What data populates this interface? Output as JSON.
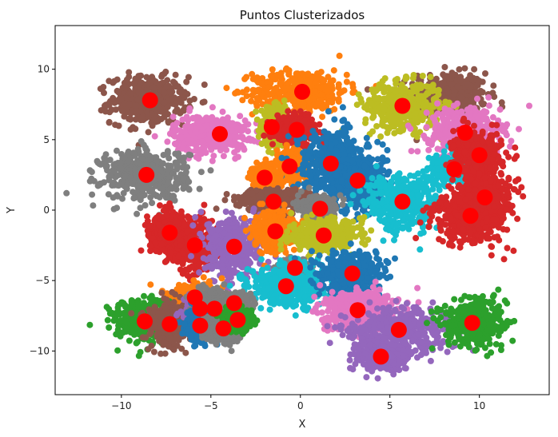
{
  "chart_data": {
    "type": "scatter",
    "title": "Puntos Clusterizados",
    "xlabel": "X",
    "ylabel": "Y",
    "xlim": [
      -13.7,
      13.9
    ],
    "ylim": [
      -13.1,
      13.1
    ],
    "xticks": [
      -10,
      -5,
      0,
      5,
      10
    ],
    "yticks": [
      -10,
      -5,
      0,
      5,
      10
    ],
    "xtick_labels": [
      "−10",
      "−5",
      "0",
      "5",
      "10"
    ],
    "ytick_labels": [
      "−10",
      "−5",
      "0",
      "5",
      "10"
    ],
    "grid": false,
    "legend": false,
    "palette": {
      "blue": "#1f77b4",
      "orange": "#ff7f0e",
      "green": "#2ca02c",
      "red": "#d62728",
      "purple": "#9467bd",
      "brown": "#8c564b",
      "pink": "#e377c2",
      "gray": "#7f7f7f",
      "olive": "#bcbd22",
      "cyan": "#17becf",
      "centroid": "#ff0000"
    },
    "clusters": [
      {
        "center": [
          8.2,
          8.2
        ],
        "color": "brown",
        "spread": [
          2.0,
          1.4
        ]
      },
      {
        "center": [
          -8.5,
          7.8
        ],
        "color": "brown",
        "spread": [
          1.9,
          1.5
        ]
      },
      {
        "center": [
          0.0,
          8.5
        ],
        "color": "orange",
        "spread": [
          2.4,
          1.3
        ]
      },
      {
        "center": [
          5.7,
          7.4
        ],
        "color": "olive",
        "spread": [
          1.9,
          1.5
        ]
      },
      {
        "center": [
          -5.0,
          5.4
        ],
        "color": "pink",
        "spread": [
          1.9,
          1.2
        ]
      },
      {
        "center": [
          9.2,
          5.6
        ],
        "color": "pink",
        "spread": [
          1.8,
          1.5
        ]
      },
      {
        "center": [
          -1.5,
          5.9
        ],
        "color": "olive",
        "spread": [
          0.6,
          1.2
        ]
      },
      {
        "center": [
          -0.2,
          5.7
        ],
        "color": "red",
        "spread": [
          1.0,
          0.8
        ]
      },
      {
        "center": [
          -8.7,
          2.5
        ],
        "color": "gray",
        "spread": [
          2.2,
          1.6
        ]
      },
      {
        "center": [
          -0.5,
          3.1
        ],
        "color": "orange",
        "spread": [
          0.8,
          1.0
        ]
      },
      {
        "center": [
          1.7,
          3.3
        ],
        "color": "blue",
        "spread": [
          1.7,
          2.2
        ]
      },
      {
        "center": [
          3.2,
          2.1
        ],
        "color": "blue",
        "spread": [
          1.5,
          1.8
        ]
      },
      {
        "center": [
          -2.0,
          2.3
        ],
        "color": "orange",
        "spread": [
          0.6,
          0.8
        ]
      },
      {
        "center": [
          5.7,
          0.6
        ],
        "color": "cyan",
        "spread": [
          1.8,
          1.8
        ]
      },
      {
        "center": [
          8.5,
          2.9
        ],
        "color": "cyan",
        "spread": [
          1.0,
          0.8
        ]
      },
      {
        "center": [
          9.9,
          3.9
        ],
        "color": "red",
        "spread": [
          1.2,
          1.4
        ]
      },
      {
        "center": [
          10.3,
          0.9
        ],
        "color": "red",
        "spread": [
          1.2,
          1.2
        ]
      },
      {
        "center": [
          9.5,
          -0.4
        ],
        "color": "red",
        "spread": [
          1.8,
          1.8
        ]
      },
      {
        "center": [
          -1.5,
          0.7
        ],
        "color": "brown",
        "spread": [
          1.8,
          0.7
        ]
      },
      {
        "center": [
          1.0,
          0.1
        ],
        "color": "gray",
        "spread": [
          0.8,
          0.7
        ]
      },
      {
        "center": [
          -7.3,
          -1.6
        ],
        "color": "red",
        "spread": [
          1.0,
          1.2
        ]
      },
      {
        "center": [
          -5.9,
          -2.5
        ],
        "color": "red",
        "spread": [
          1.2,
          1.6
        ]
      },
      {
        "center": [
          -3.7,
          -2.6
        ],
        "color": "purple",
        "spread": [
          1.4,
          1.9
        ]
      },
      {
        "center": [
          -1.4,
          -1.5
        ],
        "color": "orange",
        "spread": [
          1.0,
          1.2
        ]
      },
      {
        "center": [
          1.3,
          -1.8
        ],
        "color": "olive",
        "spread": [
          1.7,
          1.0
        ]
      },
      {
        "center": [
          -0.3,
          -4.1
        ],
        "color": "gray",
        "spread": [
          0.6,
          0.5
        ]
      },
      {
        "center": [
          -0.8,
          -5.4
        ],
        "color": "cyan",
        "spread": [
          2.0,
          1.3
        ]
      },
      {
        "center": [
          2.9,
          -4.5
        ],
        "color": "blue",
        "spread": [
          1.6,
          1.4
        ]
      },
      {
        "center": [
          -5.9,
          -6.2
        ],
        "color": "orange",
        "spread": [
          1.3,
          0.8
        ]
      },
      {
        "center": [
          -8.7,
          -7.9
        ],
        "color": "green",
        "spread": [
          1.5,
          1.3
        ]
      },
      {
        "center": [
          -7.3,
          -8.1
        ],
        "color": "brown",
        "spread": [
          1.1,
          1.4
        ]
      },
      {
        "center": [
          -5.6,
          -7.1
        ],
        "color": "purple",
        "spread": [
          0.8,
          0.8
        ]
      },
      {
        "center": [
          -4.8,
          -7.0
        ],
        "color": "gray",
        "spread": [
          1.0,
          1.1
        ]
      },
      {
        "center": [
          -5.6,
          -8.2
        ],
        "color": "blue",
        "spread": [
          0.7,
          0.9
        ]
      },
      {
        "center": [
          -4.3,
          -8.4
        ],
        "color": "gray",
        "spread": [
          0.8,
          0.8
        ]
      },
      {
        "center": [
          -3.7,
          -6.6
        ],
        "color": "gray",
        "spread": [
          0.8,
          0.6
        ]
      },
      {
        "center": [
          -3.5,
          -7.8
        ],
        "color": "green",
        "spread": [
          0.7,
          0.6
        ]
      },
      {
        "center": [
          3.2,
          -7.1
        ],
        "color": "pink",
        "spread": [
          1.8,
          1.2
        ]
      },
      {
        "center": [
          5.5,
          -8.5
        ],
        "color": "purple",
        "spread": [
          2.6,
          1.4
        ]
      },
      {
        "center": [
          4.5,
          -10.4
        ],
        "color": "purple",
        "spread": [
          1.2,
          0.9
        ]
      },
      {
        "center": [
          9.6,
          -8.0
        ],
        "color": "green",
        "spread": [
          1.5,
          1.5
        ]
      }
    ],
    "centroids": [
      [
        -8.4,
        7.8
      ],
      [
        0.1,
        8.4
      ],
      [
        5.7,
        7.4
      ],
      [
        -4.5,
        5.4
      ],
      [
        -1.6,
        5.9
      ],
      [
        -0.2,
        5.7
      ],
      [
        9.2,
        5.5
      ],
      [
        10.0,
        3.9
      ],
      [
        8.6,
        2.9
      ],
      [
        -8.6,
        2.5
      ],
      [
        -0.6,
        3.1
      ],
      [
        1.7,
        3.3
      ],
      [
        -2.0,
        2.3
      ],
      [
        3.2,
        2.1
      ],
      [
        10.3,
        0.9
      ],
      [
        -1.5,
        0.6
      ],
      [
        1.1,
        0.1
      ],
      [
        5.7,
        0.6
      ],
      [
        9.5,
        -0.4
      ],
      [
        -7.3,
        -1.6
      ],
      [
        -5.9,
        -2.5
      ],
      [
        -1.4,
        -1.5
      ],
      [
        1.3,
        -1.8
      ],
      [
        -3.7,
        -2.6
      ],
      [
        -0.3,
        -4.1
      ],
      [
        2.9,
        -4.5
      ],
      [
        -0.8,
        -5.4
      ],
      [
        -5.9,
        -6.2
      ],
      [
        -3.7,
        -6.6
      ],
      [
        -5.6,
        -7.0
      ],
      [
        -4.8,
        -7.0
      ],
      [
        3.2,
        -7.1
      ],
      [
        -8.7,
        -7.9
      ],
      [
        -7.3,
        -8.1
      ],
      [
        -5.6,
        -8.2
      ],
      [
        -4.3,
        -8.4
      ],
      [
        -3.5,
        -7.8
      ],
      [
        5.5,
        -8.5
      ],
      [
        9.6,
        -8.0
      ],
      [
        4.5,
        -10.4
      ]
    ]
  }
}
